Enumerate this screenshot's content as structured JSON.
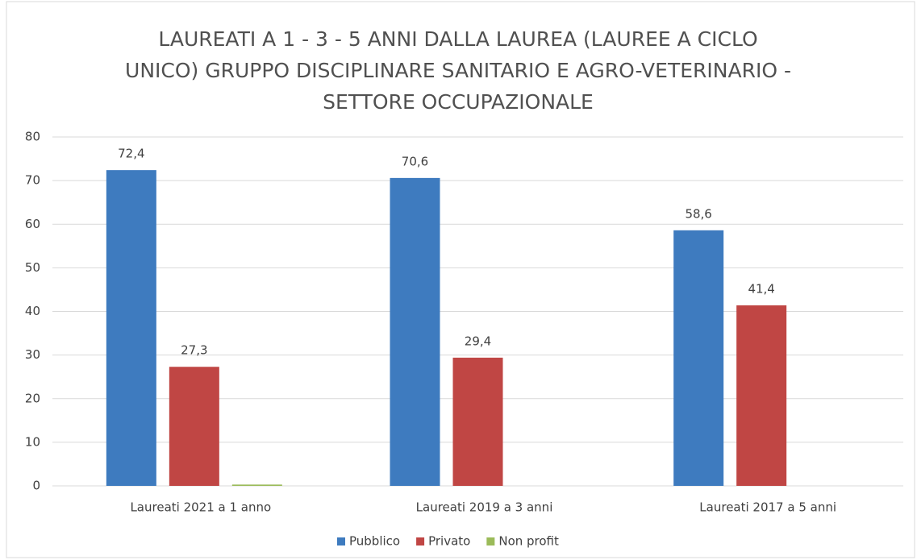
{
  "chart_data": {
    "type": "bar",
    "title": "LAUREATI A 1 - 3 - 5 ANNI DALLA LAUREA (LAUREE A CICLO UNICO) GRUPPO DISCIPLINARE SANITARIO E AGRO-VETERINARIO - SETTORE OCCUPAZIONALE",
    "categories": [
      "Laureati 2021 a 1 anno",
      "Laureati 2019 a 3 anni",
      "Laureati 2017 a 5 anni"
    ],
    "series": [
      {
        "name": "Pubblico",
        "color": "#3e7bbf",
        "values": [
          72.4,
          70.6,
          58.6
        ],
        "value_labels": [
          "72,4",
          "70,6",
          "58,6"
        ]
      },
      {
        "name": "Privato",
        "color": "#c04644",
        "values": [
          27.3,
          29.4,
          41.4
        ],
        "value_labels": [
          "27,3",
          "29,4",
          "41,4"
        ]
      },
      {
        "name": "Non profit",
        "color": "#9bbb59",
        "values": [
          0.3,
          null,
          null
        ]
      }
    ],
    "ylim": [
      0,
      80
    ],
    "yticks": [
      0,
      10,
      20,
      30,
      40,
      50,
      60,
      70,
      80
    ],
    "grid": true,
    "legend": "bottom"
  }
}
